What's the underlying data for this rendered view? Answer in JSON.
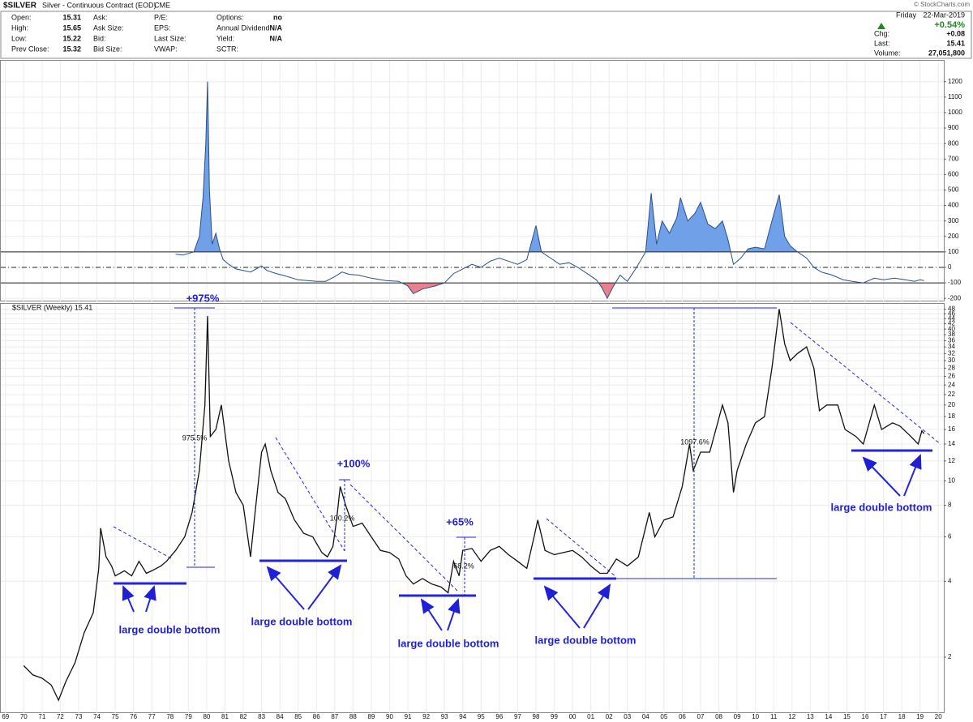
{
  "header": {
    "symbol": "$SILVER",
    "name": "Silver - Continuous Contract (EOD)",
    "exchange": "CME",
    "watermark": "© StockCharts.com",
    "day": "Friday",
    "date": "22-Mar-2019",
    "change_pct": "+0.54%",
    "columns": [
      [
        {
          "label": "Open:",
          "value": "15.31"
        },
        {
          "label": "High:",
          "value": "15.65"
        },
        {
          "label": "Low:",
          "value": "15.22"
        },
        {
          "label": "Prev Close:",
          "value": "15.32"
        }
      ],
      [
        {
          "label": "Ask:"
        },
        {
          "label": "Ask Size:"
        },
        {
          "label": "Bid:"
        },
        {
          "label": "Bid Size:"
        }
      ],
      [
        {
          "label": "P/E:"
        },
        {
          "label": "EPS:"
        },
        {
          "label": "Last Size:"
        },
        {
          "label": "VWAP:"
        }
      ],
      [
        {
          "label": "Options:",
          "value": "no"
        },
        {
          "label": "Annual Dividend:",
          "value": "N/A"
        },
        {
          "label": "Yield:",
          "value": "N/A"
        },
        {
          "label": "SCTR:"
        }
      ]
    ],
    "right": [
      {
        "label": "Chg:",
        "value": "+0.08"
      },
      {
        "label": "Last:",
        "value": "15.41"
      },
      {
        "label": "Volume:",
        "value": "27,051,800"
      }
    ]
  },
  "chart_data": [
    {
      "type": "area",
      "color": "#2b4f8a",
      "above_color": "#6fa0e8",
      "below_color": "#e8808e",
      "reference_lines": [
        -100,
        0,
        100
      ],
      "xlim": [
        1968.7,
        2020.3
      ],
      "ylim": [
        -220,
        1340
      ],
      "yticks": [
        -200,
        -100,
        0,
        100,
        200,
        300,
        400,
        500,
        600,
        700,
        800,
        900,
        1000,
        1100,
        1200
      ],
      "x": [
        1978.3,
        1978.7,
        1979.0,
        1979.3,
        1979.6,
        1979.8,
        1979.95,
        1980.05,
        1980.15,
        1980.3,
        1980.5,
        1980.7,
        1980.9,
        1981.2,
        1981.6,
        1982.0,
        1982.4,
        1982.7,
        1983.0,
        1983.3,
        1983.8,
        1984.3,
        1985.0,
        1985.5,
        1986.0,
        1986.5,
        1987.0,
        1987.4,
        1987.8,
        1988.3,
        1989.0,
        1989.8,
        1990.5,
        1991.0,
        1991.3,
        1991.8,
        1992.5,
        1993.0,
        1993.5,
        1994.0,
        1994.5,
        1995.0,
        1995.5,
        1996.0,
        1996.5,
        1997.0,
        1997.5,
        1998.0,
        1998.3,
        1998.8,
        1999.3,
        1999.8,
        2000.3,
        2000.8,
        2001.3,
        2001.6,
        2001.9,
        2002.2,
        2002.6,
        2003.0,
        2003.5,
        2004.0,
        2004.3,
        2004.6,
        2004.9,
        2005.3,
        2005.7,
        2005.9,
        2006.3,
        2006.7,
        2007.0,
        2007.4,
        2007.8,
        2008.2,
        2008.5,
        2008.8,
        2009.2,
        2009.6,
        2010.0,
        2010.5,
        2010.9,
        2011.3,
        2011.6,
        2011.9,
        2012.3,
        2012.8,
        2013.2,
        2013.6,
        2014.2,
        2014.8,
        2015.3,
        2015.9,
        2016.5,
        2017.0,
        2017.6,
        2018.2,
        2018.7,
        2019.0,
        2019.22
      ],
      "values": [
        85,
        80,
        90,
        100,
        200,
        450,
        800,
        1200,
        500,
        150,
        220,
        120,
        50,
        20,
        -10,
        -20,
        -30,
        -10,
        10,
        -20,
        -40,
        -55,
        -80,
        -85,
        -90,
        -90,
        -60,
        -30,
        -45,
        -50,
        -70,
        -85,
        -90,
        -120,
        -170,
        -140,
        -120,
        -100,
        -40,
        -10,
        20,
        0,
        40,
        60,
        40,
        20,
        50,
        270,
        100,
        60,
        20,
        30,
        0,
        -40,
        -80,
        -130,
        -200,
        -130,
        -50,
        -90,
        0,
        100,
        480,
        150,
        300,
        220,
        320,
        450,
        300,
        350,
        420,
        280,
        250,
        300,
        180,
        20,
        60,
        120,
        130,
        120,
        300,
        470,
        200,
        140,
        100,
        60,
        0,
        -30,
        -50,
        -80,
        -90,
        -100,
        -70,
        -80,
        -70,
        -80,
        -90,
        -80,
        -85
      ]
    },
    {
      "type": "line",
      "label": "$SILVER (Weekly) 15.41",
      "color": "#111111",
      "log_scale": true,
      "xlim": [
        1968.7,
        2020.3
      ],
      "ylim": [
        1.2,
        50
      ],
      "yticks": [
        2,
        4,
        6,
        8,
        10,
        12,
        14,
        16,
        18,
        20,
        22,
        24,
        26,
        28,
        30,
        32,
        34,
        36,
        38,
        40,
        42,
        44,
        46,
        48
      ],
      "xticks": [
        {
          "value": 1969,
          "label": "69"
        },
        {
          "value": 1970,
          "label": "70"
        },
        {
          "value": 1971,
          "label": "71"
        },
        {
          "value": 1972,
          "label": "72"
        },
        {
          "value": 1973,
          "label": "73"
        },
        {
          "value": 1974,
          "label": "74"
        },
        {
          "value": 1975,
          "label": "75"
        },
        {
          "value": 1976,
          "label": "76"
        },
        {
          "value": 1977,
          "label": "77"
        },
        {
          "value": 1978,
          "label": "78"
        },
        {
          "value": 1979,
          "label": "79"
        },
        {
          "value": 1980,
          "label": "80"
        },
        {
          "value": 1981,
          "label": "81"
        },
        {
          "value": 1982,
          "label": "82"
        },
        {
          "value": 1983,
          "label": "83"
        },
        {
          "value": 1984,
          "label": "84"
        },
        {
          "value": 1985,
          "label": "85"
        },
        {
          "value": 1986,
          "label": "86"
        },
        {
          "value": 1987,
          "label": "87"
        },
        {
          "value": 1988,
          "label": "88"
        },
        {
          "value": 1989,
          "label": "89"
        },
        {
          "value": 1990,
          "label": "90"
        },
        {
          "value": 1991,
          "label": "91"
        },
        {
          "value": 1992,
          "label": "92"
        },
        {
          "value": 1993,
          "label": "93"
        },
        {
          "value": 1994,
          "label": "94"
        },
        {
          "value": 1995,
          "label": "95"
        },
        {
          "value": 1996,
          "label": "96"
        },
        {
          "value": 1997,
          "label": "97"
        },
        {
          "value": 1998,
          "label": "98"
        },
        {
          "value": 1999,
          "label": "99"
        },
        {
          "value": 2000,
          "label": "00"
        },
        {
          "value": 2001,
          "label": "01"
        },
        {
          "value": 2002,
          "label": "02"
        },
        {
          "value": 2003,
          "label": "03"
        },
        {
          "value": 2004,
          "label": "04"
        },
        {
          "value": 2005,
          "label": "05"
        },
        {
          "value": 2006,
          "label": "06"
        },
        {
          "value": 2007,
          "label": "07"
        },
        {
          "value": 2008,
          "label": "08"
        },
        {
          "value": 2009,
          "label": "09"
        },
        {
          "value": 2010,
          "label": "10"
        },
        {
          "value": 2011,
          "label": "11"
        },
        {
          "value": 2012,
          "label": "12"
        },
        {
          "value": 2013,
          "label": "13"
        },
        {
          "value": 2014,
          "label": "14"
        },
        {
          "value": 2015,
          "label": "15"
        },
        {
          "value": 2016,
          "label": "16"
        },
        {
          "value": 2017,
          "label": "17"
        },
        {
          "value": 2018,
          "label": "18"
        },
        {
          "value": 2019,
          "label": "19"
        },
        {
          "value": 2020,
          "label": "20"
        }
      ],
      "annotations": [
        "+975%",
        "975.5%",
        "+100%",
        "100.2%",
        "+65%",
        "68.2%",
        "1097.6%",
        "large double bottom",
        "large double bottom",
        "large double bottom",
        "large double bottom",
        "large double bottom"
      ],
      "x": [
        1970.0,
        1970.5,
        1971.0,
        1971.5,
        1971.9,
        1972.3,
        1972.8,
        1973.3,
        1973.8,
        1974.1,
        1974.2,
        1974.5,
        1974.8,
        1975.0,
        1975.5,
        1975.9,
        1976.3,
        1976.7,
        1977.0,
        1977.5,
        1977.8,
        1978.3,
        1978.8,
        1979.2,
        1979.6,
        1979.9,
        1980.05,
        1980.2,
        1980.5,
        1980.8,
        1981.2,
        1981.6,
        1982.0,
        1982.4,
        1982.6,
        1983.0,
        1983.2,
        1983.5,
        1983.9,
        1984.3,
        1984.8,
        1985.3,
        1985.8,
        1986.3,
        1986.6,
        1986.9,
        1987.1,
        1987.3,
        1987.6,
        1988.0,
        1988.5,
        1989.0,
        1989.5,
        1990.0,
        1990.5,
        1990.9,
        1991.3,
        1991.8,
        1992.3,
        1992.8,
        1993.2,
        1993.5,
        1993.8,
        1994.0,
        1994.5,
        1995.0,
        1995.5,
        1996.0,
        1996.5,
        1997.0,
        1997.5,
        1997.9,
        1998.1,
        1998.5,
        1999.0,
        1999.5,
        2000.0,
        2000.5,
        2001.0,
        2001.5,
        2001.9,
        2002.4,
        2003.0,
        2003.6,
        2004.2,
        2004.5,
        2005.0,
        2005.5,
        2006.0,
        2006.4,
        2006.6,
        2007.0,
        2007.5,
        2008.2,
        2008.5,
        2008.8,
        2009.0,
        2009.5,
        2010.0,
        2010.5,
        2010.9,
        2011.3,
        2011.6,
        2011.9,
        2012.3,
        2012.8,
        2013.2,
        2013.5,
        2013.9,
        2014.5,
        2014.9,
        2015.5,
        2015.9,
        2016.5,
        2016.9,
        2017.5,
        2017.9,
        2018.5,
        2018.9,
        2019.1,
        2019.22
      ],
      "values": [
        1.85,
        1.7,
        1.65,
        1.55,
        1.35,
        1.6,
        1.9,
        2.5,
        3.0,
        4.5,
        6.5,
        5.0,
        4.6,
        4.2,
        4.4,
        4.2,
        4.8,
        4.3,
        4.4,
        4.6,
        4.8,
        5.3,
        6.0,
        7.5,
        11,
        20,
        45,
        15,
        16,
        20,
        12,
        9,
        8,
        5.0,
        7,
        13,
        14,
        11,
        9,
        8.5,
        7,
        6.2,
        6.0,
        5.2,
        5.0,
        5.5,
        7,
        9.5,
        8,
        6.6,
        6.8,
        6.0,
        5.3,
        5.2,
        4.9,
        4.2,
        3.9,
        4.1,
        3.9,
        3.8,
        3.6,
        4.8,
        4.2,
        5.3,
        5.4,
        4.8,
        5.3,
        5.5,
        5.1,
        4.8,
        4.5,
        6.0,
        7.0,
        5.3,
        5.1,
        5.2,
        5.3,
        5.0,
        4.6,
        4.3,
        4.3,
        4.9,
        4.6,
        5.0,
        7.5,
        6.0,
        7.0,
        7.2,
        9.5,
        14,
        11,
        13,
        13,
        20,
        17,
        9,
        11,
        14,
        17,
        18,
        28,
        48,
        35,
        30,
        32,
        34,
        28,
        19,
        20,
        20,
        16,
        15,
        14,
        20,
        16,
        17,
        16.5,
        15,
        14,
        15.8,
        15.41
      ]
    }
  ]
}
